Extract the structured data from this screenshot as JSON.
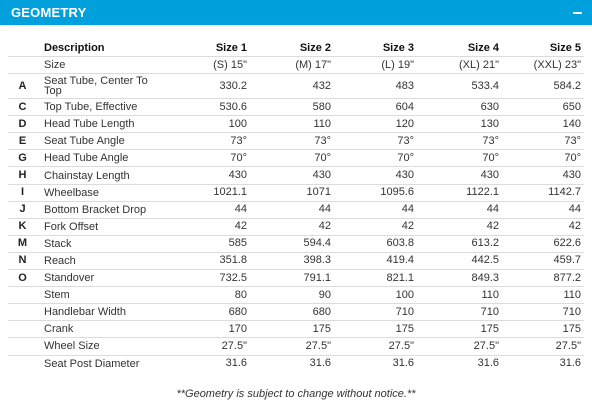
{
  "header": {
    "title": "GEOMETRY"
  },
  "table": {
    "headers": [
      "Description",
      "Size 1",
      "Size 2",
      "Size 3",
      "Size 4",
      "Size 5"
    ],
    "size_row": {
      "label": "Size",
      "values": [
        "(S) 15\"",
        "(M) 17\"",
        "(L) 19\"",
        "(XL) 21\"",
        "(XXL) 23\""
      ]
    },
    "rows": [
      {
        "letter": "A",
        "label": "Seat Tube, Center To Top",
        "values": [
          "330.2",
          "432",
          "483",
          "533.4",
          "584.2"
        ]
      },
      {
        "letter": "C",
        "label": "Top Tube, Effective",
        "values": [
          "530.6",
          "580",
          "604",
          "630",
          "650"
        ]
      },
      {
        "letter": "D",
        "label": "Head Tube Length",
        "values": [
          "100",
          "110",
          "120",
          "130",
          "140"
        ]
      },
      {
        "letter": "E",
        "label": "Seat Tube Angle",
        "values": [
          "73°",
          "73°",
          "73°",
          "73°",
          "73°"
        ]
      },
      {
        "letter": "G",
        "label": "Head Tube Angle",
        "values": [
          "70°",
          "70°",
          "70°",
          "70°",
          "70°"
        ]
      },
      {
        "letter": "H",
        "label": "Chainstay Length",
        "values": [
          "430",
          "430",
          "430",
          "430",
          "430"
        ]
      },
      {
        "letter": "I",
        "label": "Wheelbase",
        "values": [
          "1021.1",
          "1071",
          "1095.6",
          "1122.1",
          "1142.7"
        ]
      },
      {
        "letter": "J",
        "label": "Bottom Bracket Drop",
        "values": [
          "44",
          "44",
          "44",
          "44",
          "44"
        ]
      },
      {
        "letter": "K",
        "label": "Fork Offset",
        "values": [
          "42",
          "42",
          "42",
          "42",
          "42"
        ]
      },
      {
        "letter": "M",
        "label": "Stack",
        "values": [
          "585",
          "594.4",
          "603.8",
          "613.2",
          "622.6"
        ]
      },
      {
        "letter": "N",
        "label": "Reach",
        "values": [
          "351.8",
          "398.3",
          "419.4",
          "442.5",
          "459.7"
        ]
      },
      {
        "letter": "O",
        "label": "Standover",
        "values": [
          "732.5",
          "791.1",
          "821.1",
          "849.3",
          "877.2"
        ]
      },
      {
        "letter": "",
        "label": "Stem",
        "values": [
          "80",
          "90",
          "100",
          "110",
          "110"
        ]
      },
      {
        "letter": "",
        "label": "Handlebar Width",
        "values": [
          "680",
          "680",
          "710",
          "710",
          "710"
        ]
      },
      {
        "letter": "",
        "label": "Crank",
        "values": [
          "170",
          "175",
          "175",
          "175",
          "175"
        ]
      },
      {
        "letter": "",
        "label": "Wheel Size",
        "values": [
          "27.5\"",
          "27.5\"",
          "27.5\"",
          "27.5\"",
          "27.5\""
        ]
      },
      {
        "letter": "",
        "label": "Seat Post Diameter",
        "values": [
          "31.6",
          "31.6",
          "31.6",
          "31.6",
          "31.6"
        ]
      }
    ]
  },
  "footnote": "**Geometry is subject to change without notice.**",
  "colors": {
    "header_bg": "#00a0dc",
    "header_text": "#ffffff",
    "row_border": "#dcdcdc"
  },
  "icons": {
    "collapse": "minus-icon"
  }
}
